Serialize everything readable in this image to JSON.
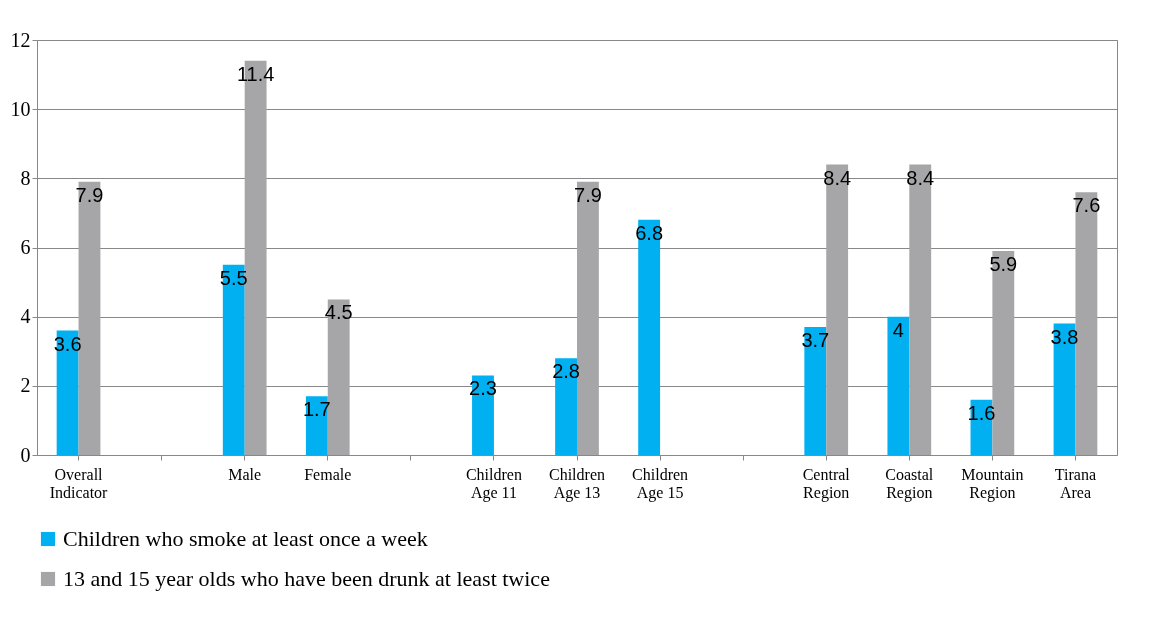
{
  "chart_data": {
    "type": "bar",
    "categories": [
      "Overall\nIndicator",
      null,
      "Male",
      "Female",
      null,
      "Children\nAge 11",
      "Children\nAge 13",
      "Children\nAge 15",
      null,
      "Central\nRegion",
      "Coastal\nRegion",
      "Mountain\nRegion",
      "Tirana\nArea"
    ],
    "series": [
      {
        "name": "Children who smoke at least once a week",
        "color": "#00b0f0",
        "values": [
          3.6,
          null,
          5.5,
          1.7,
          null,
          2.3,
          2.8,
          6.8,
          null,
          3.7,
          4,
          1.6,
          3.8
        ]
      },
      {
        "name": "13 and 15 year olds who have been drunk at least twice",
        "color": "#a6a6a8",
        "values": [
          7.9,
          null,
          11.4,
          4.5,
          null,
          null,
          7.9,
          null,
          null,
          8.4,
          8.4,
          5.9,
          7.6
        ]
      }
    ],
    "ylim": [
      0,
      12
    ],
    "yticks": [
      0,
      2,
      4,
      6,
      8,
      10,
      12
    ],
    "grid": "y",
    "legend": "bottom",
    "data_labels": true
  }
}
